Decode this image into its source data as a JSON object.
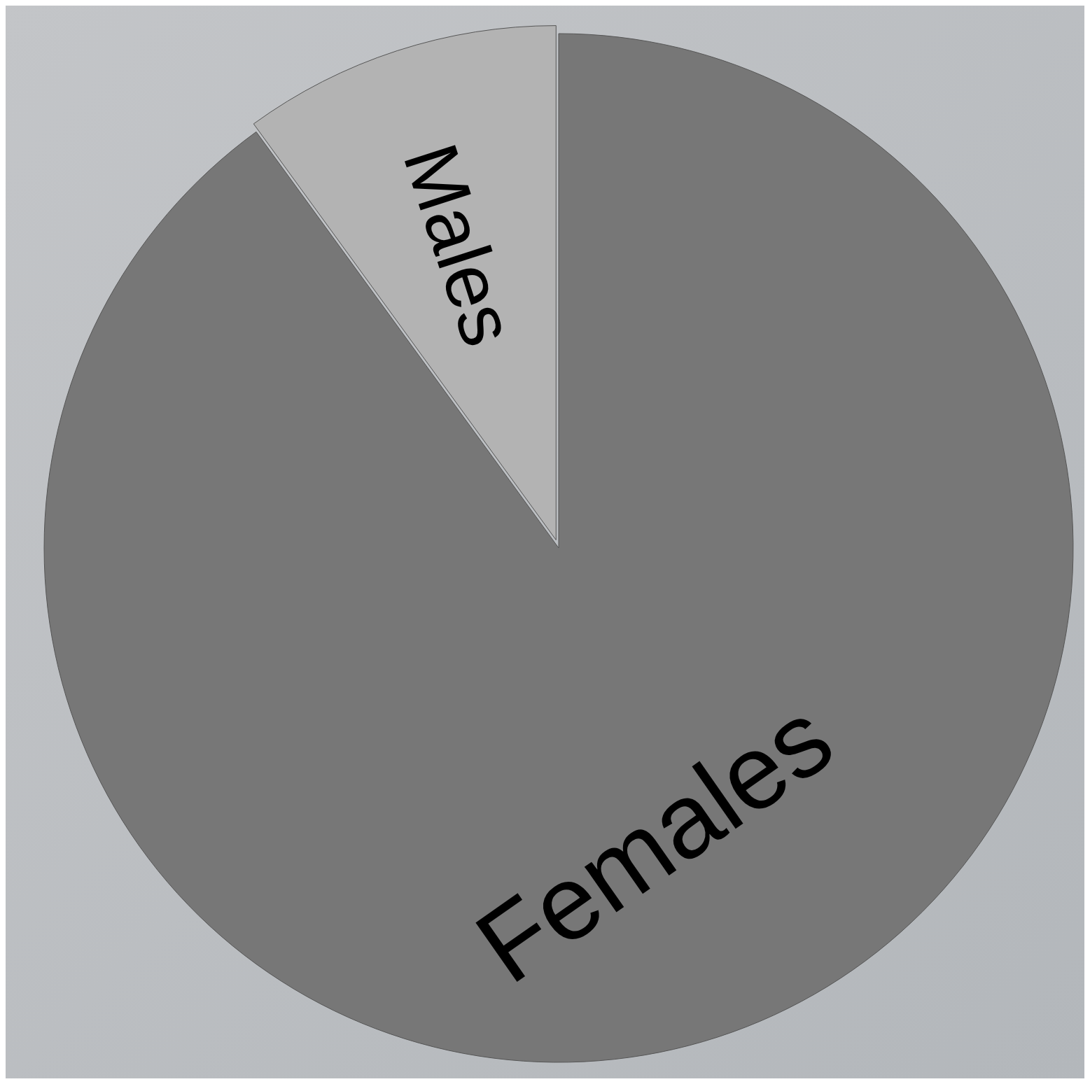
{
  "chart_data": {
    "type": "pie",
    "categories": [
      "Males",
      "Females"
    ],
    "values": [
      10,
      90
    ],
    "colors": [
      "#b3b3b3",
      "#777777"
    ]
  }
}
